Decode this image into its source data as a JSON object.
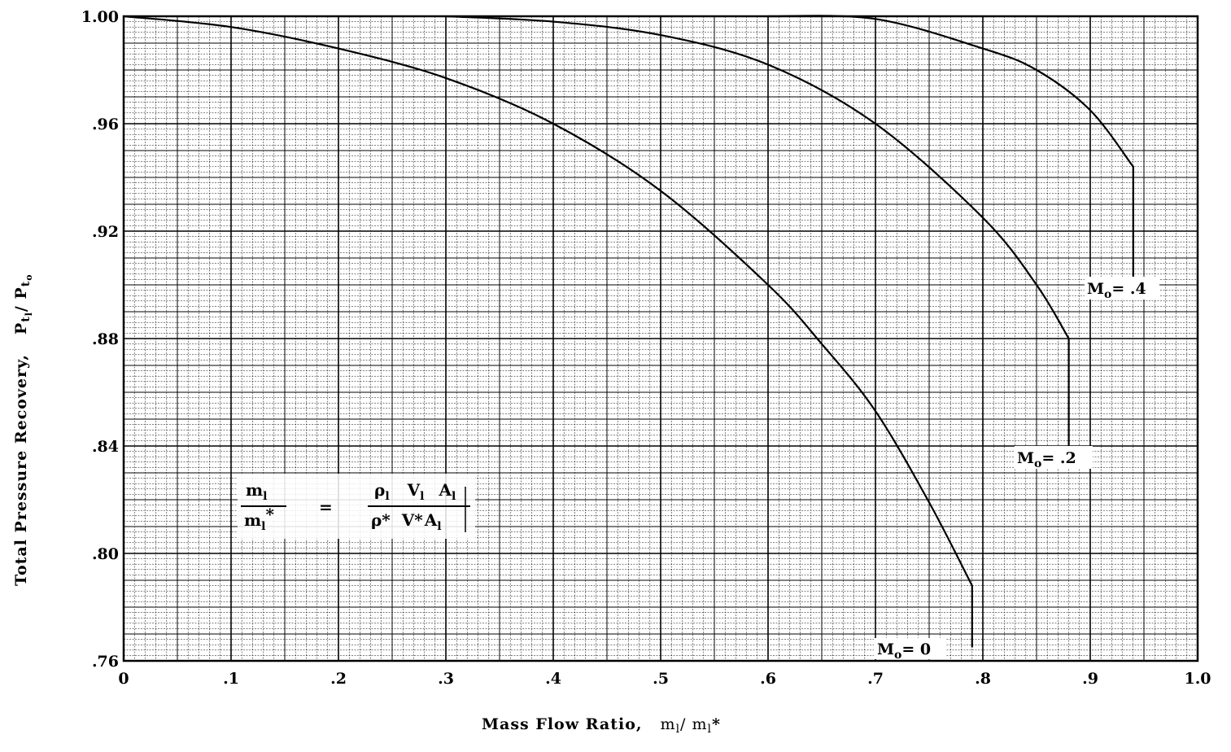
{
  "chart_data": {
    "type": "line",
    "title": "",
    "xlabel": "Mass Flow Ratio,",
    "xlabel_var": "m",
    "xlabel_var_sub": "l",
    "xlabel_var_den": "/ m",
    "xlabel_var_den_sub": "l",
    "xlabel_var_star": "*",
    "ylabel": "Total Pressure Recovery,",
    "ylabel_var_a": "P",
    "ylabel_var_a_sub": "t",
    "ylabel_var_a_subsub": "l",
    "ylabel_var_b": "/ P",
    "ylabel_var_b_sub": "t",
    "ylabel_var_b_subsub": "o",
    "xlim": [
      0,
      1.0
    ],
    "ylim": [
      0.76,
      1.0
    ],
    "grid": true,
    "x_ticks": [
      "0",
      ".1",
      ".2",
      ".3",
      ".4",
      ".5",
      ".6",
      ".7",
      ".8",
      ".9",
      "1.0"
    ],
    "y_ticks": [
      "1.00",
      ".96",
      ".92",
      ".88",
      ".84",
      ".80",
      ".76"
    ],
    "y_tick_values": [
      1.0,
      0.96,
      0.92,
      0.88,
      0.84,
      0.8,
      0.76
    ],
    "series": [
      {
        "name": "M",
        "name_sub": "o",
        "name_suffix": "= 0",
        "x": [
          0,
          0.1,
          0.2,
          0.3,
          0.4,
          0.5,
          0.6,
          0.65,
          0.7,
          0.75,
          0.79,
          0.79
        ],
        "y": [
          1.0,
          0.996,
          0.988,
          0.977,
          0.96,
          0.935,
          0.9,
          0.878,
          0.853,
          0.819,
          0.788,
          0.765
        ]
      },
      {
        "name": "M",
        "name_sub": "o",
        "name_suffix": "= .2",
        "x": [
          0.3,
          0.4,
          0.5,
          0.6,
          0.7,
          0.8,
          0.85,
          0.88,
          0.88
        ],
        "y": [
          1.0,
          0.998,
          0.993,
          0.982,
          0.96,
          0.925,
          0.9,
          0.88,
          0.84
        ]
      },
      {
        "name": "M",
        "name_sub": "o",
        "name_suffix": "= .4",
        "x": [
          0.6,
          0.7,
          0.8,
          0.85,
          0.9,
          0.94,
          0.94
        ],
        "y": [
          1.0,
          0.999,
          0.988,
          0.98,
          0.965,
          0.944,
          0.895
        ]
      }
    ],
    "formula": {
      "lhs_num": "m",
      "lhs_num_sub": "l",
      "lhs_den": "m",
      "lhs_den_sub": "l",
      "lhs_den_star": "*",
      "equals": "=",
      "rhs_num": [
        "ρ",
        "l",
        "V",
        "l",
        "A",
        "l"
      ],
      "rhs_den": [
        "ρ*",
        "V*",
        "A",
        "l"
      ]
    }
  }
}
